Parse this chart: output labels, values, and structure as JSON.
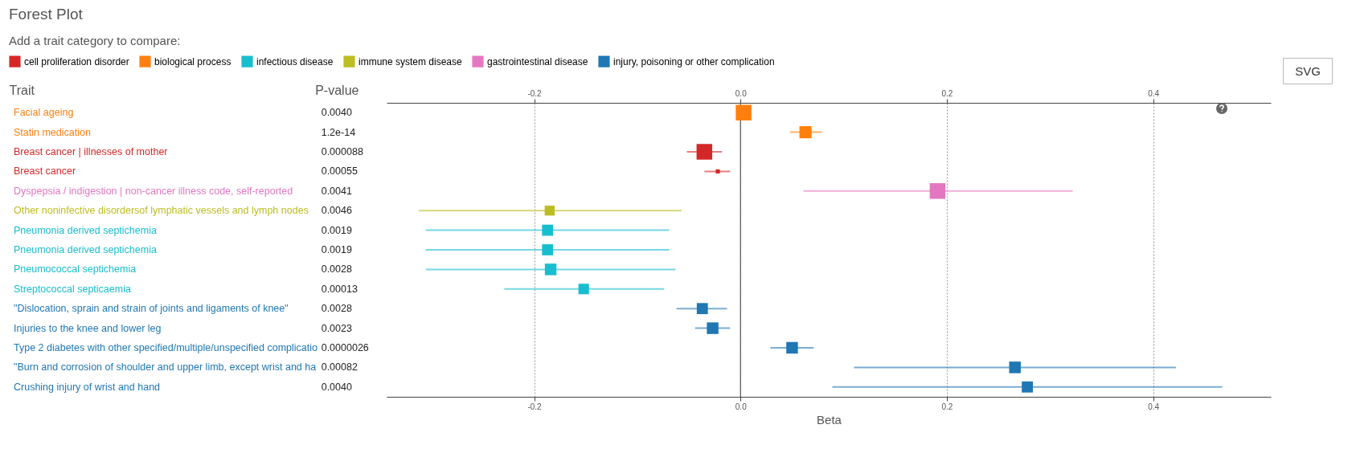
{
  "chart_data": {
    "type": "bubble",
    "orientation": "horizontal",
    "title": "Forest Plot",
    "subtitle": "Add a trait category to compare:",
    "ylabel": "Trait",
    "y2label": "P-value",
    "xlabel": "Beta",
    "categories": [
      "Facial ageing",
      "Statin medication",
      "Breast cancer | illnesses of mother",
      "Breast cancer",
      "Dyspepsia / indigestion | non-cancer illness code, self-reported",
      "Other noninfective disordersof lymphatic vessels and lymph nodes",
      "Pneumonia derived septichemia",
      "Pneumonia derived septichemia",
      "Pneumococcal septichemia",
      "Streptococcal septicaemia",
      "\"Dislocation, sprain and strain of joints and ligaments of knee\"",
      "Injuries to the knee and lower leg",
      "Type 2 diabetes with other specified/multiple/unspecified complicatio",
      "\"Burn and corrosion of shoulder and upper limb, except wrist and ha",
      "Crushing injury of wrist and hand"
    ],
    "y2_categories": [
      "0.0040",
      "1.2e-14",
      "0.000088",
      "0.00055",
      "0.0041",
      "0.0046",
      "0.0019",
      "0.0019",
      "0.0028",
      "0.00013",
      "0.0028",
      "0.0023",
      "0.0000026",
      "0.00082",
      "0.0040"
    ],
    "series": [
      {
        "name": "cell proliferation disorder",
        "color": "#d62728",
        "values": [
          null,
          null,
          -0.035,
          -0.022,
          null,
          null,
          null,
          null,
          null,
          null,
          null,
          null,
          null,
          null,
          null
        ],
        "errors": [
          null,
          null,
          [
            -0.052,
            -0.018
          ],
          [
            -0.035,
            -0.01
          ],
          null,
          null,
          null,
          null,
          null,
          null,
          null,
          null,
          null,
          null,
          null
        ],
        "sizes": [
          null,
          null,
          1,
          0.07,
          null,
          null,
          null,
          null,
          null,
          null,
          null,
          null,
          null,
          null,
          null
        ]
      },
      {
        "name": "biological process",
        "color": "#ff7f0e",
        "values": [
          0.003,
          0.063,
          null,
          null,
          null,
          null,
          null,
          null,
          null,
          null,
          null,
          null,
          null,
          null,
          null
        ],
        "errors": [
          null,
          [
            0.048,
            0.079
          ],
          null,
          null,
          null,
          null,
          null,
          null,
          null,
          null,
          null,
          null,
          null,
          null,
          null
        ],
        "sizes": [
          1,
          0.6,
          null,
          null,
          null,
          null,
          null,
          null,
          null,
          null,
          null,
          null,
          null,
          null,
          null
        ]
      },
      {
        "name": "infectious disease",
        "color": "#17becf",
        "values": [
          null,
          null,
          null,
          null,
          null,
          null,
          -0.187,
          -0.187,
          -0.184,
          -0.152,
          null,
          null,
          null,
          null,
          null
        ],
        "errors": [
          null,
          null,
          null,
          null,
          null,
          null,
          [
            -0.305,
            -0.069
          ],
          [
            -0.305,
            -0.069
          ],
          [
            -0.305,
            -0.063
          ],
          [
            -0.229,
            -0.074
          ],
          null,
          null,
          null,
          null,
          null
        ],
        "sizes": [
          null,
          null,
          null,
          null,
          null,
          null,
          0.5,
          0.5,
          0.55,
          0.45,
          null,
          null,
          null,
          null,
          null
        ]
      },
      {
        "name": "immune system disease",
        "color": "#bcbd22",
        "values": [
          null,
          null,
          null,
          null,
          null,
          -0.185,
          null,
          null,
          null,
          null,
          null,
          null,
          null,
          null,
          null
        ],
        "errors": [
          null,
          null,
          null,
          null,
          null,
          [
            -0.312,
            -0.057
          ],
          null,
          null,
          null,
          null,
          null,
          null,
          null,
          null,
          null
        ],
        "sizes": [
          null,
          null,
          null,
          null,
          null,
          0.4,
          null,
          null,
          null,
          null,
          null,
          null,
          null,
          null,
          null
        ]
      },
      {
        "name": "gastrointestinal disease",
        "color": "#e377c2",
        "values": [
          null,
          null,
          null,
          null,
          0.191,
          null,
          null,
          null,
          null,
          null,
          null,
          null,
          null,
          null,
          null
        ],
        "errors": [
          null,
          null,
          null,
          null,
          [
            0.061,
            0.322
          ],
          null,
          null,
          null,
          null,
          null,
          null,
          null,
          null,
          null,
          null
        ],
        "sizes": [
          null,
          null,
          null,
          null,
          1,
          null,
          null,
          null,
          null,
          null,
          null,
          null,
          null,
          null,
          null
        ]
      },
      {
        "name": "injury, poisoning or other complication",
        "color": "#1f77b4",
        "values": [
          null,
          null,
          null,
          null,
          null,
          null,
          null,
          null,
          null,
          null,
          -0.037,
          -0.027,
          0.05,
          0.266,
          0.278
        ],
        "errors": [
          null,
          null,
          null,
          null,
          null,
          null,
          null,
          null,
          null,
          null,
          [
            -0.062,
            -0.013
          ],
          [
            -0.044,
            -0.01
          ],
          [
            0.029,
            0.071
          ],
          [
            0.11,
            0.422
          ],
          [
            0.089,
            0.467
          ]
        ],
        "sizes": [
          null,
          null,
          null,
          null,
          null,
          null,
          null,
          null,
          null,
          null,
          0.5,
          0.55,
          0.55,
          0.55,
          0.5
        ]
      }
    ],
    "xlim": [
      -0.343,
      0.514
    ],
    "xticks": [
      -0.2,
      {
        "value": 0,
        "label": "0.0"
      },
      0.2,
      0.4
    ],
    "x2lim": [
      -0.343,
      0.514
    ],
    "x2ticks": [
      -0.2,
      {
        "value": 0,
        "label": "0.0"
      },
      0.2,
      0.4
    ],
    "ref_lines": [
      {
        "axis": "x",
        "value": 0,
        "color": "#555555",
        "line_style": "solid"
      }
    ],
    "grid": "x",
    "legend": "top",
    "marker": "square",
    "annotations": [
      "SVG"
    ]
  }
}
